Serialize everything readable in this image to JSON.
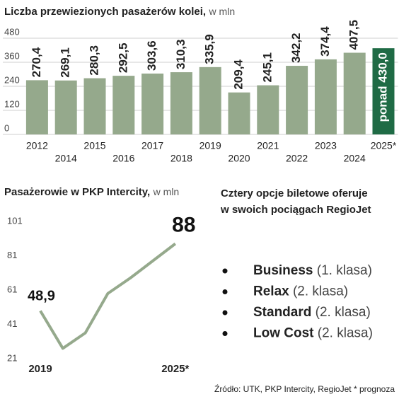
{
  "chart_data": [
    {
      "type": "bar",
      "title": "Liczba przewiezionych pasażerów kolei,",
      "unit": "w mln",
      "categories": [
        "2012",
        "2014",
        "2015",
        "2016",
        "2017",
        "2018",
        "2019",
        "2020",
        "2021",
        "2022",
        "2023",
        "2024",
        "2025*"
      ],
      "values": [
        270.4,
        269.1,
        280.3,
        292.5,
        303.6,
        310.3,
        335.9,
        209.4,
        245.1,
        342.2,
        374.4,
        407.5,
        430
      ],
      "value_labels": [
        "270,4",
        "269,1",
        "280,3",
        "292,5",
        "303,6",
        "310,3",
        "335,9",
        "209,4",
        "245,1",
        "342,2",
        "374,4",
        "407,5",
        "ponad 430,0"
      ],
      "colors": [
        "#95a98c",
        "#95a98c",
        "#95a98c",
        "#95a98c",
        "#95a98c",
        "#95a98c",
        "#95a98c",
        "#95a98c",
        "#95a98c",
        "#95a98c",
        "#95a98c",
        "#95a98c",
        "#1f6b45"
      ],
      "ylim": [
        0,
        480
      ],
      "yticks": [
        0,
        120,
        240,
        360,
        480
      ],
      "grid": true
    },
    {
      "type": "line",
      "title": "Pasażerowie w PKP Intercity,",
      "unit": "w mln",
      "categories": [
        "2019",
        null,
        null,
        null,
        null,
        null,
        "2025*"
      ],
      "values": [
        48.9,
        27,
        36,
        59,
        68,
        78,
        88
      ],
      "value_labels": [
        "48,9",
        null,
        null,
        null,
        null,
        null,
        "88"
      ],
      "color": "#95a98c",
      "ylim": [
        21,
        101
      ],
      "yticks": [
        21,
        41,
        61,
        81,
        101
      ],
      "grid": false
    }
  ],
  "panel": {
    "title_lines": [
      "Cztery opcje biletowe oferuje",
      "w swoich pociągach RegioJet"
    ],
    "items": [
      {
        "name": "Business",
        "detail": "(1. klasa)"
      },
      {
        "name": "Relax",
        "detail": "(2. klasa)"
      },
      {
        "name": "Standard",
        "detail": "(2. klasa)"
      },
      {
        "name": "Low Cost",
        "detail": "(2. klasa)"
      }
    ]
  },
  "source": "Źródło: UTK, PKP Intercity, RegioJet * prognoza"
}
